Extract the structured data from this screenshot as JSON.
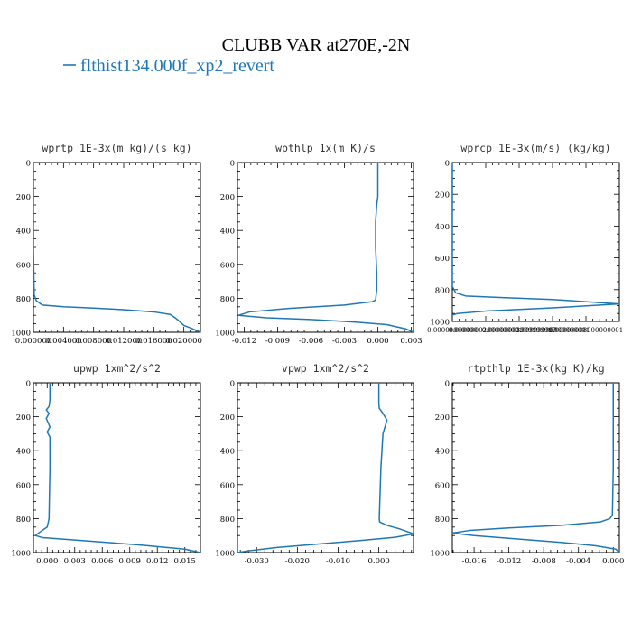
{
  "figure": {
    "title": "CLUBB VAR at270E,-2N",
    "legend_label": "flthist134.000f_xp2_revert",
    "line_color": "#1f77b4"
  },
  "chart_data": [
    {
      "type": "line",
      "title": "wprtp  1E-3x(m kg)/(s kg)",
      "xlim": [
        0.0,
        0.0222
      ],
      "ylim": [
        1000,
        0
      ],
      "xticks": [
        "0.000000",
        "0.004000",
        "0.008000",
        "0.012000",
        "0.016000",
        "0.020000"
      ],
      "xtick_values": [
        0.0,
        0.004,
        0.008,
        0.012,
        0.016,
        0.02
      ],
      "yticks": [
        "0",
        "200",
        "400",
        "600",
        "800",
        "1000"
      ],
      "series": [
        {
          "x": [
            0.0,
            0.0,
            0.0001,
            0.0004,
            0.0012,
            0.004,
            0.008,
            0.012,
            0.016,
            0.0182,
            0.019,
            0.0195,
            0.02,
            0.0209,
            0.0218,
            0.0222
          ],
          "y": [
            0,
            500,
            780,
            815,
            840,
            850,
            858,
            867,
            880,
            895,
            920,
            940,
            960,
            975,
            992,
            1000
          ]
        }
      ]
    },
    {
      "type": "line",
      "title": "wpthlp  1x(m K)/s",
      "xlim": [
        -0.0126,
        0.0032
      ],
      "ylim": [
        1000,
        0
      ],
      "xticks": [
        "-0.012",
        "-0.009",
        "-0.006",
        "-0.003",
        "0.000",
        "0.003"
      ],
      "xtick_values": [
        -0.012,
        -0.009,
        -0.006,
        -0.003,
        0.0,
        0.003
      ],
      "yticks": [
        "0",
        "200",
        "400",
        "600",
        "800",
        "1000"
      ],
      "series": [
        {
          "x": [
            0.0,
            0.0,
            -0.0001,
            -0.0002,
            -0.0002,
            -0.0001,
            -0.0001,
            -0.0002,
            -0.0005,
            -0.003,
            -0.008,
            -0.0115,
            -0.0125,
            -0.01,
            -0.006,
            -0.002,
            0.0008,
            0.0025,
            0.0032
          ],
          "y": [
            0,
            200,
            250,
            350,
            500,
            650,
            750,
            810,
            820,
            840,
            860,
            880,
            900,
            915,
            925,
            940,
            955,
            980,
            1000
          ]
        }
      ]
    },
    {
      "type": "line",
      "title": "wprcp  1E-3x(m/s) (kg/kg)",
      "xlim": [
        0.0,
        1e-07
      ],
      "ylim": [
        1000,
        0
      ],
      "xticks": [
        "0.00000000000",
        "0.00000002000000001",
        "0.00000003999999997",
        "0.00000006000000001",
        "0.00000008000000001"
      ],
      "xtick_values": [
        0.0,
        2e-08,
        4e-08,
        6e-08,
        8e-08
      ],
      "yticks": [
        "0",
        "200",
        "400",
        "600",
        "800",
        "1000"
      ],
      "series": [
        {
          "x": [
            0.0,
            0.0,
            2e-09,
            8e-09,
            3e-08,
            6e-08,
            1e-07,
            6e-08,
            2e-08,
            3e-09,
            0.0
          ],
          "y": [
            0,
            780,
            820,
            840,
            850,
            862,
            890,
            915,
            935,
            950,
            960
          ]
        }
      ]
    },
    {
      "type": "line",
      "title": "upwp  1xm^2/s^2",
      "xlim": [
        -0.0015,
        0.0167
      ],
      "ylim": [
        1000,
        0
      ],
      "xticks": [
        "0.000",
        "0.003",
        "0.006",
        "0.009",
        "0.012",
        "0.015"
      ],
      "xtick_values": [
        0.0,
        0.003,
        0.006,
        0.009,
        0.012,
        0.015
      ],
      "yticks": [
        "0",
        "200",
        "400",
        "600",
        "800",
        "1000"
      ],
      "series": [
        {
          "x": [
            0.0003,
            0.0003,
            0.0002,
            -0.0001,
            0.0002,
            -0.0001,
            0.0003,
            0.0,
            0.0003,
            0.0003,
            0.0002,
            0.0,
            -0.0008,
            -0.0013,
            -0.0005,
            0.004,
            0.01,
            0.015,
            0.0167
          ],
          "y": [
            0,
            100,
            140,
            160,
            180,
            210,
            260,
            290,
            320,
            500,
            800,
            850,
            880,
            900,
            912,
            930,
            955,
            980,
            1000
          ]
        }
      ]
    },
    {
      "type": "line",
      "title": "vpwp  1xm^2/s^2",
      "xlim": [
        -0.0347,
        0.0085
      ],
      "ylim": [
        1000,
        0
      ],
      "xticks": [
        "-0.030",
        "-0.020",
        "-0.010",
        "0.000"
      ],
      "xtick_values": [
        -0.03,
        -0.02,
        -0.01,
        0.0
      ],
      "yticks": [
        "0",
        "200",
        "400",
        "600",
        "800",
        "1000"
      ],
      "series": [
        {
          "x": [
            0.0,
            0.0,
            0.0001,
            0.001,
            0.002,
            0.001,
            0.0005,
            0.0001,
            0.0002,
            0.002,
            0.005,
            0.0085,
            0.004,
            -0.005,
            -0.015,
            -0.025,
            -0.032,
            -0.0347
          ],
          "y": [
            0,
            120,
            150,
            180,
            220,
            300,
            500,
            800,
            820,
            840,
            860,
            890,
            910,
            930,
            950,
            970,
            990,
            1000
          ]
        }
      ]
    },
    {
      "type": "line",
      "title": "rtpthlp  1E-3x(kg K)/kg",
      "xlim": [
        -0.0185,
        0.0007
      ],
      "ylim": [
        1000,
        0
      ],
      "xticks": [
        "-0.016",
        "-0.012",
        "-0.008",
        "-0.004",
        "0.000"
      ],
      "xtick_values": [
        -0.016,
        -0.012,
        -0.008,
        -0.004,
        0.0
      ],
      "yticks": [
        "0",
        "200",
        "400",
        "600",
        "800",
        "1000"
      ],
      "series": [
        {
          "x": [
            0.0,
            0.0,
            -0.0001,
            -0.0004,
            -0.0015,
            -0.006,
            -0.012,
            -0.0165,
            -0.0185,
            -0.016,
            -0.011,
            -0.006,
            -0.002,
            0.0003,
            0.0007
          ],
          "y": [
            0,
            500,
            780,
            800,
            820,
            840,
            855,
            870,
            885,
            900,
            920,
            940,
            960,
            980,
            1000
          ]
        }
      ]
    }
  ]
}
